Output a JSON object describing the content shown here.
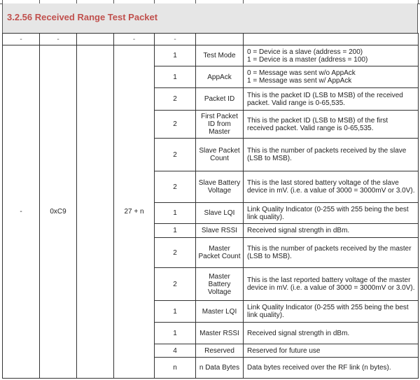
{
  "section_title": "3.2.56 Received Range Test Packet",
  "header_row": [
    "-",
    "-",
    "",
    "-",
    "-",
    "",
    ""
  ],
  "packet": {
    "col1": "-",
    "command": "0xC9",
    "col3": "",
    "length": "27 + n"
  },
  "fields": [
    {
      "size": "1",
      "name": "Test Mode",
      "desc": "0 = Device is a slave (address = 200)\n1 = Device is a master (address = 100)"
    },
    {
      "size": "1",
      "name": "AppAck",
      "desc": "0 = Message was sent w/o AppAck\n1 = Message was sent w/ AppAck"
    },
    {
      "size": "2",
      "name": "Packet ID",
      "desc": "This is the packet ID (LSB to MSB) of the received packet.  Valid range is 0-65,535."
    },
    {
      "size": "2",
      "name": "First Packet ID from Master",
      "desc": "This is the packet ID (LSB to MSB) of the first received packet.  Valid range is 0-65,535."
    },
    {
      "size": "2",
      "name": "Slave Packet Count",
      "desc": "This is the number of packets received by the slave (LSB to MSB)."
    },
    {
      "size": "2",
      "name": "Slave Battery Voltage",
      "desc": "This is the last stored battery voltage of the slave device in mV.  (i.e. a value of 3000 = 3000mV or 3.0V)."
    },
    {
      "size": "1",
      "name": "Slave LQI",
      "desc": "Link Quality Indicator (0-255 with 255 being the best link quality)."
    },
    {
      "size": "1",
      "name": "Slave RSSI",
      "desc": "Received signal strength in dBm."
    },
    {
      "size": "2",
      "name": "Master Packet Count",
      "desc": "This is the number of packets received by the master (LSB to MSB)."
    },
    {
      "size": "2",
      "name": "Master Battery Voltage",
      "desc": "This is the last reported battery voltage of the master device in mV.  (i.e. a value of 3000 = 3000mV or 3.0V)."
    },
    {
      "size": "1",
      "name": "Master LQI",
      "desc": "Link Quality Indicator (0-255 with 255 being the best link quality)."
    },
    {
      "size": "1",
      "name": "Master RSSI",
      "desc": "Received signal strength in dBm."
    },
    {
      "size": "4",
      "name": "Reserved",
      "desc": "Reserved for future use"
    },
    {
      "size": "n",
      "name": "n Data Bytes",
      "desc": "Data bytes received over the RF link (n bytes)."
    }
  ]
}
